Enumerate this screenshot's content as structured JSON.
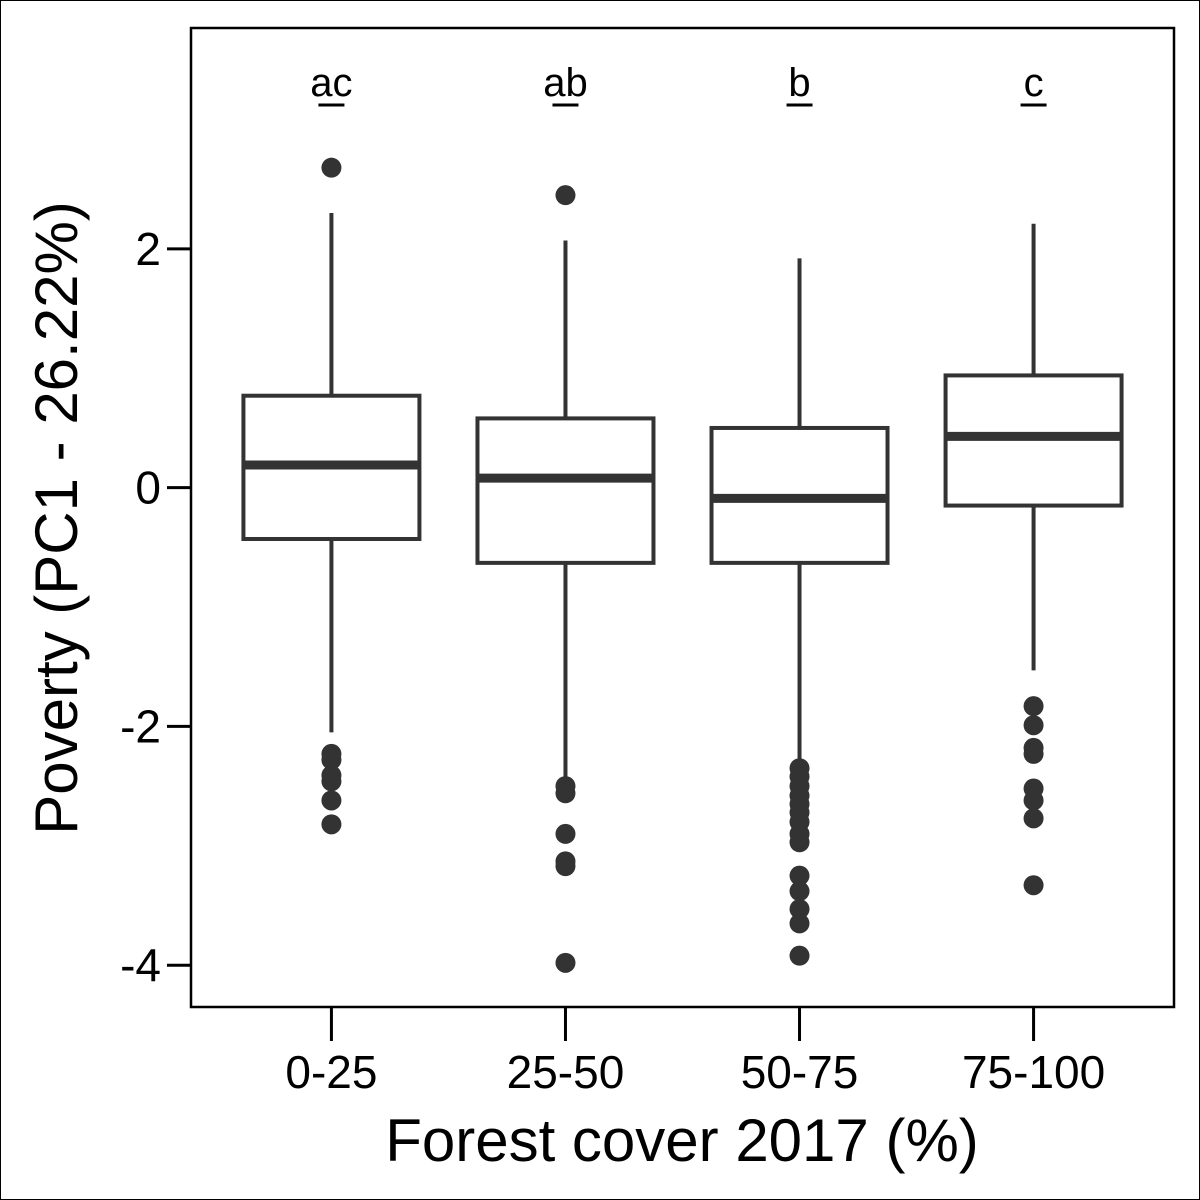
{
  "chart_data": {
    "type": "box",
    "xlabel": "Forest cover 2017 (%)",
    "ylabel": "Poverty (PC1 - 26.22%)",
    "ylim": [
      -4.35,
      3.85
    ],
    "yticks": [
      -4,
      -2,
      0,
      2
    ],
    "ytick_labels": [
      "-4",
      "-2",
      "0",
      "2"
    ],
    "grid": false,
    "categories": [
      "0-25",
      "25-50",
      "50-75",
      "75-100"
    ],
    "significance_letters": [
      "ac",
      "ab",
      "b",
      "c"
    ],
    "boxes": [
      {
        "category": "0-25",
        "whisker_low": -2.05,
        "q1": -0.43,
        "median": 0.19,
        "q3": 0.77,
        "whisker_high": 2.3,
        "outliers": [
          2.68,
          -2.23,
          -2.28,
          -2.41,
          -2.46,
          -2.62,
          -2.82
        ]
      },
      {
        "category": "25-50",
        "whisker_low": -2.45,
        "q1": -0.63,
        "median": 0.08,
        "q3": 0.58,
        "whisker_high": 2.07,
        "outliers": [
          2.45,
          -2.5,
          -2.56,
          -2.9,
          -3.13,
          -3.17,
          -3.98
        ]
      },
      {
        "category": "50-75",
        "whisker_low": -2.3,
        "q1": -0.63,
        "median": -0.09,
        "q3": 0.5,
        "whisker_high": 1.92,
        "outliers": [
          -2.35,
          -2.42,
          -2.5,
          -2.58,
          -2.65,
          -2.72,
          -2.8,
          -2.9,
          -2.97,
          -3.25,
          -3.38,
          -3.53,
          -3.65,
          -3.92
        ]
      },
      {
        "category": "75-100",
        "whisker_low": -1.53,
        "q1": -0.15,
        "median": 0.43,
        "q3": 0.94,
        "whisker_high": 2.21,
        "outliers": [
          -1.83,
          -1.99,
          -2.18,
          -2.23,
          -2.52,
          -2.62,
          -2.77,
          -3.33
        ]
      }
    ],
    "colors": {
      "line": "#333333",
      "outlier": "#333333",
      "frame": "#000000"
    }
  }
}
